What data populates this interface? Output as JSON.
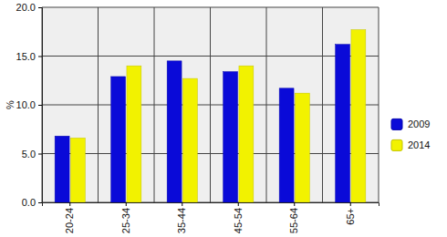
{
  "chart_data": {
    "type": "bar",
    "ylabel": "%",
    "categories": [
      "20-24",
      "25-34",
      "35-44",
      "45-54",
      "55-64",
      "65+"
    ],
    "series": [
      {
        "name": "2009",
        "color": "#0a0ad8",
        "values": [
          6.8,
          12.9,
          14.5,
          13.4,
          11.7,
          16.2
        ]
      },
      {
        "name": "2014",
        "color": "#f2f200",
        "values": [
          6.6,
          14.0,
          12.7,
          14.0,
          11.2,
          17.7
        ]
      }
    ],
    "ylim": [
      0,
      20
    ],
    "yticks": [
      {
        "value": 0,
        "label": "0.0"
      },
      {
        "value": 5,
        "label": "5.0"
      },
      {
        "value": 10,
        "label": "10.0"
      },
      {
        "value": 15,
        "label": "15.0"
      },
      {
        "value": 20,
        "label": "20.0"
      }
    ],
    "grid": true,
    "legend": "right"
  }
}
